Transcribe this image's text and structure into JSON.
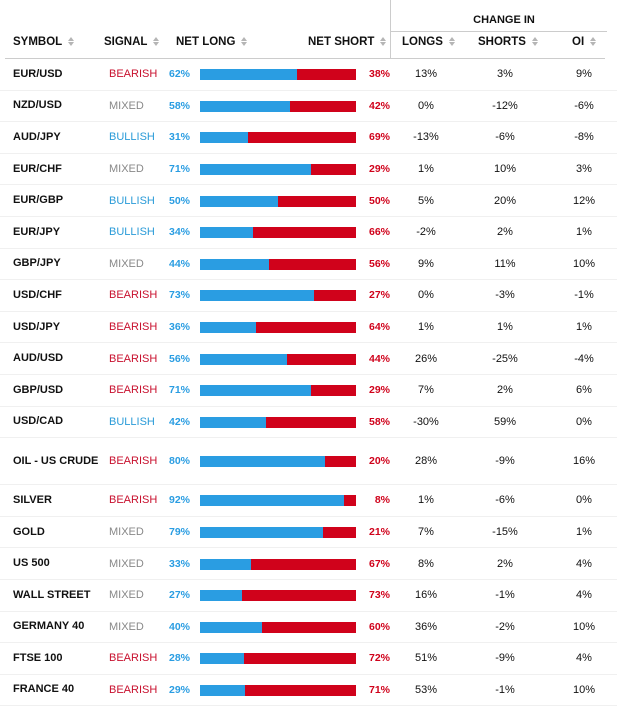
{
  "header": {
    "symbol": "SYMBOL",
    "signal": "SIGNAL",
    "net_long": "NET LONG",
    "net_short": "NET SHORT",
    "change_in": "CHANGE IN",
    "longs": "LONGS",
    "shorts": "SHORTS",
    "oi": "OI"
  },
  "colors": {
    "bullish": "#2a9bd8",
    "bearish": "#c8102e",
    "mixed": "#888888",
    "long_bar": "#2a9de2",
    "short_bar": "#d0021b"
  },
  "rows": [
    {
      "symbol": "EUR/USD",
      "signal": "BEARISH",
      "net_long": "62%",
      "net_short": "38%",
      "longs": "13%",
      "shorts": "3%",
      "oi": "9%",
      "long_pct": 62
    },
    {
      "symbol": "NZD/USD",
      "signal": "MIXED",
      "net_long": "58%",
      "net_short": "42%",
      "longs": "0%",
      "shorts": "-12%",
      "oi": "-6%",
      "long_pct": 58
    },
    {
      "symbol": "AUD/JPY",
      "signal": "BULLISH",
      "net_long": "31%",
      "net_short": "69%",
      "longs": "-13%",
      "shorts": "-6%",
      "oi": "-8%",
      "long_pct": 31
    },
    {
      "symbol": "EUR/CHF",
      "signal": "MIXED",
      "net_long": "71%",
      "net_short": "29%",
      "longs": "1%",
      "shorts": "10%",
      "oi": "3%",
      "long_pct": 71
    },
    {
      "symbol": "EUR/GBP",
      "signal": "BULLISH",
      "net_long": "50%",
      "net_short": "50%",
      "longs": "5%",
      "shorts": "20%",
      "oi": "12%",
      "long_pct": 50
    },
    {
      "symbol": "EUR/JPY",
      "signal": "BULLISH",
      "net_long": "34%",
      "net_short": "66%",
      "longs": "-2%",
      "shorts": "2%",
      "oi": "1%",
      "long_pct": 34
    },
    {
      "symbol": "GBP/JPY",
      "signal": "MIXED",
      "net_long": "44%",
      "net_short": "56%",
      "longs": "9%",
      "shorts": "11%",
      "oi": "10%",
      "long_pct": 44
    },
    {
      "symbol": "USD/CHF",
      "signal": "BEARISH",
      "net_long": "73%",
      "net_short": "27%",
      "longs": "0%",
      "shorts": "-3%",
      "oi": "-1%",
      "long_pct": 73
    },
    {
      "symbol": "USD/JPY",
      "signal": "BEARISH",
      "net_long": "36%",
      "net_short": "64%",
      "longs": "1%",
      "shorts": "1%",
      "oi": "1%",
      "long_pct": 36
    },
    {
      "symbol": "AUD/USD",
      "signal": "BEARISH",
      "net_long": "56%",
      "net_short": "44%",
      "longs": "26%",
      "shorts": "-25%",
      "oi": "-4%",
      "long_pct": 56
    },
    {
      "symbol": "GBP/USD",
      "signal": "BEARISH",
      "net_long": "71%",
      "net_short": "29%",
      "longs": "7%",
      "shorts": "2%",
      "oi": "6%",
      "long_pct": 71
    },
    {
      "symbol": "USD/CAD",
      "signal": "BULLISH",
      "net_long": "42%",
      "net_short": "58%",
      "longs": "-30%",
      "shorts": "59%",
      "oi": "0%",
      "long_pct": 42
    },
    {
      "symbol": "OIL - US CRUDE",
      "signal": "BEARISH",
      "net_long": "80%",
      "net_short": "20%",
      "longs": "28%",
      "shorts": "-9%",
      "oi": "16%",
      "long_pct": 80
    },
    {
      "symbol": "SILVER",
      "signal": "BEARISH",
      "net_long": "92%",
      "net_short": "8%",
      "longs": "1%",
      "shorts": "-6%",
      "oi": "0%",
      "long_pct": 92
    },
    {
      "symbol": "GOLD",
      "signal": "MIXED",
      "net_long": "79%",
      "net_short": "21%",
      "longs": "7%",
      "shorts": "-15%",
      "oi": "1%",
      "long_pct": 79
    },
    {
      "symbol": "US 500",
      "signal": "MIXED",
      "net_long": "33%",
      "net_short": "67%",
      "longs": "8%",
      "shorts": "2%",
      "oi": "4%",
      "long_pct": 33
    },
    {
      "symbol": "WALL STREET",
      "signal": "MIXED",
      "net_long": "27%",
      "net_short": "73%",
      "longs": "16%",
      "shorts": "-1%",
      "oi": "4%",
      "long_pct": 27
    },
    {
      "symbol": "GERMANY 40",
      "signal": "MIXED",
      "net_long": "40%",
      "net_short": "60%",
      "longs": "36%",
      "shorts": "-2%",
      "oi": "10%",
      "long_pct": 40
    },
    {
      "symbol": "FTSE 100",
      "signal": "BEARISH",
      "net_long": "28%",
      "net_short": "72%",
      "longs": "51%",
      "shorts": "-9%",
      "oi": "4%",
      "long_pct": 28
    },
    {
      "symbol": "FRANCE 40",
      "signal": "BEARISH",
      "net_long": "29%",
      "net_short": "71%",
      "longs": "53%",
      "shorts": "-1%",
      "oi": "10%",
      "long_pct": 29
    }
  ]
}
